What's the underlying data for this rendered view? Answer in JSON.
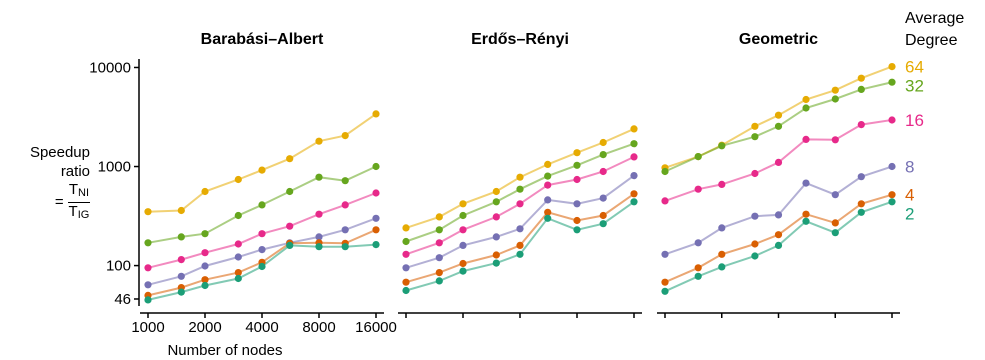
{
  "chart_data": {
    "type": "line",
    "yscale": "log",
    "ylabel": {
      "word1": "Speedup",
      "word2": "ratio",
      "equals": "=",
      "num": "T",
      "num_sub": "NI",
      "den": "T",
      "den_sub": "IG"
    },
    "xlabel": "Number of nodes",
    "x": [
      1000,
      1500,
      2000,
      3000,
      4000,
      5600,
      8000,
      11000,
      16000
    ],
    "xticks": [
      "1000",
      "2000",
      "4000",
      "8000",
      "16000"
    ],
    "yticks": [
      "10000",
      "1000",
      "100",
      "46"
    ],
    "ylim": [
      40,
      14000
    ],
    "legend_title": [
      "Average",
      "Degree"
    ],
    "series_colors": {
      "64": "#E6AB02",
      "32": "#66A61E",
      "16": "#E7298A",
      "8": "#7570B3",
      "4": "#D95F02",
      "2": "#1B9E77"
    },
    "legend_order": [
      "64",
      "32",
      "16",
      "8",
      "4",
      "2"
    ],
    "panels": [
      {
        "title": "Barabási–Albert",
        "series": [
          {
            "name": "64",
            "values": [
              350,
              360,
              560,
              740,
              920,
              1200,
              1800,
              2050,
              3400
            ]
          },
          {
            "name": "32",
            "values": [
              170,
              195,
              210,
              320,
              410,
              560,
              780,
              720,
              1000
            ]
          },
          {
            "name": "16",
            "values": [
              95,
              115,
              135,
              165,
              210,
              250,
              330,
              410,
              540
            ]
          },
          {
            "name": "8",
            "values": [
              64,
              78,
              99,
              122,
              145,
              170,
              195,
              230,
              300
            ]
          },
          {
            "name": "4",
            "values": [
              50,
              60,
              72,
              85,
              108,
              168,
              170,
              168,
              230
            ]
          },
          {
            "name": "2",
            "values": [
              45,
              54,
              63,
              74,
              98,
              160,
              155,
              155,
              163
            ]
          }
        ]
      },
      {
        "title": "Erdős–Rényi",
        "series": [
          {
            "name": "64",
            "values": [
              240,
              310,
              420,
              560,
              780,
              1050,
              1380,
              1750,
              2400
            ]
          },
          {
            "name": "32",
            "values": [
              175,
              230,
              320,
              440,
              590,
              800,
              1030,
              1320,
              1700
            ]
          },
          {
            "name": "16",
            "values": [
              130,
              170,
              230,
              310,
              420,
              650,
              740,
              890,
              1250
            ]
          },
          {
            "name": "8",
            "values": [
              95,
              120,
              160,
              195,
              235,
              460,
              420,
              480,
              810
            ]
          },
          {
            "name": "4",
            "values": [
              68,
              85,
              105,
              128,
              160,
              345,
              285,
              320,
              530
            ]
          },
          {
            "name": "2",
            "values": [
              56,
              70,
              88,
              106,
              130,
              300,
              230,
              265,
              440
            ]
          }
        ]
      },
      {
        "title": "Geometric",
        "series": [
          {
            "name": "64",
            "values": [
              970,
              1260,
              1640,
              2550,
              3300,
              4750,
              5900,
              7800,
              10200
            ]
          },
          {
            "name": "32",
            "values": [
              890,
              1260,
              1620,
              2000,
              2550,
              3900,
              4800,
              6000,
              7100
            ]
          },
          {
            "name": "16",
            "values": [
              450,
              590,
              660,
              850,
              1100,
              1880,
              1860,
              2650,
              2950
            ]
          },
          {
            "name": "8",
            "values": [
              130,
              170,
              240,
              315,
              325,
              680,
              520,
              790,
              1000
            ]
          },
          {
            "name": "4",
            "values": [
              68,
              95,
              130,
              165,
              205,
              330,
              270,
              420,
              520
            ]
          },
          {
            "name": "2",
            "values": [
              55,
              78,
              97,
              125,
              160,
              280,
              215,
              345,
              440
            ]
          }
        ]
      }
    ]
  }
}
